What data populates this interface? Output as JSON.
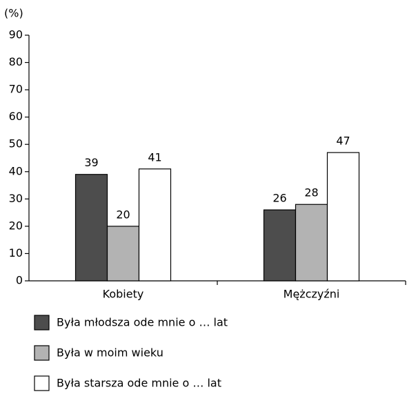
{
  "chart_data": {
    "type": "bar",
    "y_label": "(%)",
    "categories": [
      "Kobiety",
      "Mężczyźni"
    ],
    "series": [
      {
        "name": "Była młodsza ode mnie o … lat",
        "color": "#4d4d4d",
        "values": [
          39,
          26
        ]
      },
      {
        "name": "Była w moim wieku",
        "color": "#b3b3b3",
        "values": [
          20,
          28
        ]
      },
      {
        "name": "Była starsza ode mnie o … lat",
        "color": "#ffffff",
        "values": [
          41,
          47
        ]
      }
    ],
    "ylim": [
      0,
      90
    ],
    "yticks": [
      0,
      10,
      20,
      30,
      40,
      50,
      60,
      70,
      80,
      90
    ],
    "grid": false,
    "legend": "bottom",
    "data_labels": true
  }
}
